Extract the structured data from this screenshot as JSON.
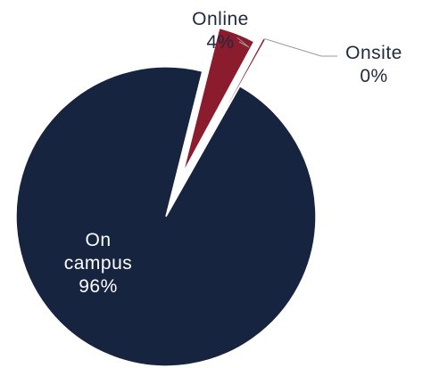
{
  "chart_data": {
    "type": "pie",
    "slices": [
      {
        "label_lines": [
          "On",
          "campus"
        ],
        "pct_label": "96%",
        "value": 96,
        "color": "#16243f"
      },
      {
        "label_lines": [
          "Online"
        ],
        "pct_label": "4%",
        "value": 4,
        "color": "#8a1c2e"
      },
      {
        "label_lines": [
          "Onsite"
        ],
        "pct_label": "0%",
        "value": 0.3,
        "color": "#8a1c2e"
      }
    ],
    "leader_line_color": "#9a9a9a",
    "label_color": "#1f2a3d",
    "inside_label_color": "#ffffff"
  }
}
